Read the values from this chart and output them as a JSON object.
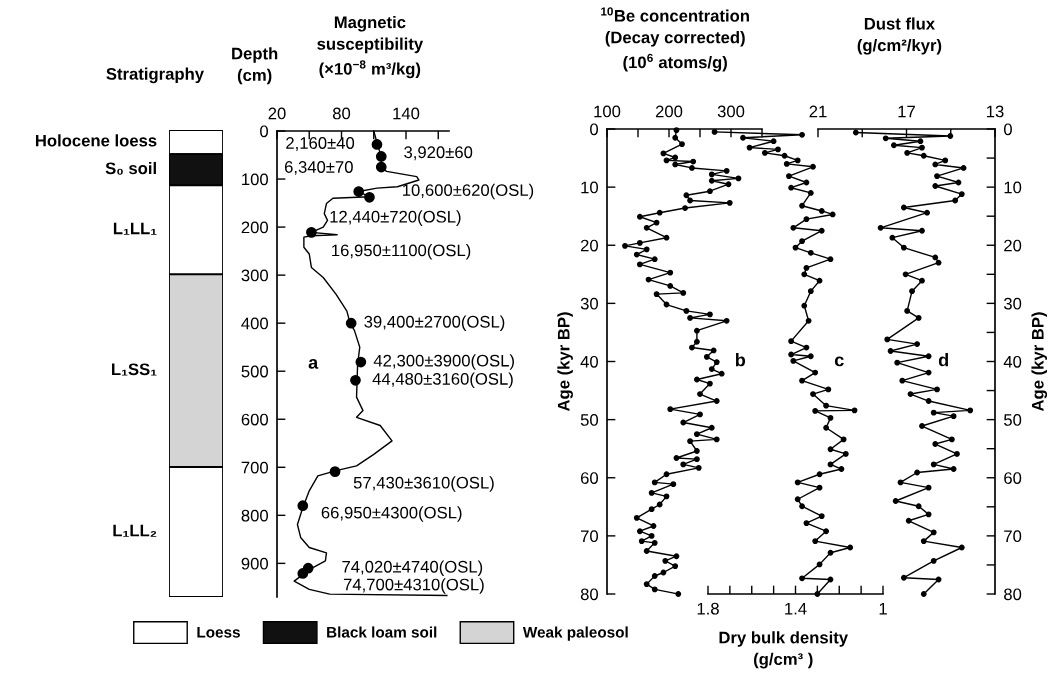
{
  "chart_data": [
    {
      "type": "bar",
      "title": "Stratigraphy",
      "categories": [
        null
      ],
      "stacked": true,
      "legend": "bottom",
      "tick_labels": false,
      "ylim": [
        970,
        0
      ],
      "series": [
        {
          "name": "Loess",
          "color": "#ffffff",
          "values": [
            50
          ]
        },
        {
          "name": "Black loam soil",
          "color": "#111111",
          "values": [
            65
          ]
        },
        {
          "color": "#ffffff",
          "values": [
            185
          ]
        },
        {
          "name": "Weak paleosol",
          "color": "#d4d4d4",
          "values": [
            400
          ]
        },
        {
          "color": "#ffffff",
          "values": [
            270
          ]
        }
      ],
      "annotations": [
        "Holocene loess",
        "S₀ soil",
        "L₁LL₁",
        "L₁SS₁",
        "L₁LL₂"
      ]
    },
    {
      "type": "line",
      "xlabel": "Magnetic\nsusceptibility\n(×10$^{−8}$ m³/kg)",
      "ylabel": "Depth\n(cm)",
      "xlim": [
        20,
        180
      ],
      "ylim": [
        970,
        0
      ],
      "xticks": [
        20,
        {
          "value": 50,
          "label": null
        },
        80,
        {
          "value": 110,
          "label": null
        },
        140,
        {
          "value": 170,
          "label": null
        }
      ],
      "yticks": [
        0,
        100,
        200,
        300,
        400,
        500,
        600,
        700,
        800,
        900
      ],
      "series": [
        {
          "type": "line",
          "color": "#000000",
          "x": [
            110,
            114,
            117,
            117,
            122,
            150,
            152,
            132,
            113,
            96,
            106,
            72,
            66,
            64,
            67,
            63,
            52,
            76,
            52,
            45,
            45,
            50,
            52,
            63,
            75,
            85,
            88,
            92,
            97,
            95,
            94,
            100,
            94,
            116,
            127,
            110,
            94,
            75,
            58,
            50,
            44,
            39,
            42,
            50,
            66,
            65,
            50,
            36,
            50,
            69,
            178
          ],
          "values": [
            0,
            32,
            53,
            77,
            84,
            95,
            102,
            116,
            119,
            126,
            137,
            140,
            151,
            172,
            186,
            200,
            211,
            216,
            218,
            221,
            242,
            256,
            284,
            305,
            340,
            375,
            400,
            415,
            450,
            485,
            554,
            582,
            596,
            613,
            645,
            673,
            697,
            707,
            718,
            749,
            784,
            819,
            846,
            867,
            878,
            895,
            913,
            937,
            954,
            964,
            967
          ]
        },
        {
          "type": "scatter",
          "color": "#000000",
          "x": [
            113,
            117,
            117,
            96,
            106,
            52,
            89,
            98,
            93,
            74,
            44,
            49,
            44
          ],
          "values": [
            28,
            53,
            75,
            126,
            138,
            211,
            400,
            481,
            519,
            709,
            780,
            910,
            921
          ]
        }
      ],
      "annotations": [
        "a",
        {
          "text": "2,160±40",
          "x": 113,
          "y": 28
        },
        {
          "text": "3,920±60",
          "x": 117,
          "y": 53
        },
        {
          "text": "6,340±70",
          "x": 117,
          "y": 75
        },
        {
          "text": "10,600±620(OSL)",
          "x": 96,
          "y": 126
        },
        {
          "text": "12,440±720(OSL)",
          "x": 106,
          "y": 138
        },
        {
          "text": "16,950±1100(OSL)",
          "x": 52,
          "y": 211
        },
        {
          "text": "39,400±2700(OSL)",
          "x": 89,
          "y": 400
        },
        {
          "text": "42,300±3900(OSL)",
          "x": 98,
          "y": 481
        },
        {
          "text": "44,480±3160(OSL)",
          "x": 93,
          "y": 519
        },
        {
          "text": "57,430±3610(OSL)",
          "x": 74,
          "y": 709
        },
        {
          "text": "66,950±4300(OSL)",
          "x": 44,
          "y": 780
        },
        {
          "text": "74,020±4740(OSL)",
          "x": 49,
          "y": 910
        },
        {
          "text": "74,700±4310(OSL)",
          "x": 44,
          "y": 921
        }
      ]
    },
    {
      "type": "line",
      "xlabel": "$^{10}$Be concentration\n(Decay corrected)\n(10$^{6}$ atoms/g)",
      "ylabel": "Age (kyr BP)",
      "xlim": [
        100,
        350
      ],
      "ylim": [
        80,
        0
      ],
      "marker": "circle",
      "xticks": [
        100,
        {
          "value": 150,
          "label": null
        },
        200,
        {
          "value": 250,
          "label": null
        },
        300,
        {
          "value": 350,
          "label": null
        }
      ],
      "yticks": [
        0,
        10,
        20,
        30,
        40,
        50,
        60,
        70,
        80
      ],
      "series": [
        {
          "color": "#000000",
          "x": [
            212,
            210,
            221,
            191,
            210,
            196,
            239,
            210,
            237,
            293,
            269,
            312,
            269,
            296,
            266,
            228,
            234,
            298,
            226,
            185,
            153,
            180,
            164,
            196,
            153,
            129,
            164,
            148,
            177,
            153,
            202,
            167,
            202,
            223,
            180,
            196,
            228,
            266,
            234,
            293,
            245,
            245,
            237,
            272,
            261,
            277,
            269,
            285,
            245,
            266,
            250,
            277,
            202,
            250,
            223,
            269,
            245,
            277,
            234,
            245,
            212,
            245,
            223,
            248,
            196,
            177,
            207,
            172,
            196,
            185,
            172,
            148,
            175,
            153,
            172,
            156,
            177,
            164,
            212,
            194,
            210,
            191,
            177,
            164,
            177,
            215
          ],
          "values": [
            0.2,
            1.5,
            2.6,
            4.2,
            4.9,
            5.4,
            5.6,
            6.1,
            6.7,
            7.2,
            7.8,
            8.5,
            8.9,
            9.5,
            10.7,
            11.4,
            12.3,
            12.7,
            13.6,
            14.4,
            15.1,
            16.1,
            17.0,
            18.7,
            19.6,
            20.1,
            20.7,
            21.6,
            22.4,
            23.3,
            24.7,
            25.9,
            27.0,
            28.2,
            28.4,
            30.2,
            31.3,
            31.9,
            32.5,
            33.0,
            34.7,
            36.6,
            37.6,
            38.1,
            39.2,
            40.1,
            41.3,
            42.1,
            43.1,
            43.8,
            45.6,
            46.8,
            48.2,
            49.1,
            50.5,
            51.4,
            52.5,
            53.4,
            53.7,
            55.4,
            56.6,
            56.8,
            57.7,
            58.3,
            59.4,
            60.8,
            61.1,
            62.6,
            63.2,
            64.6,
            65.4,
            66.9,
            68.3,
            69.2,
            70.0,
            70.9,
            71.2,
            72.6,
            73.5,
            74.3,
            75.2,
            76.3,
            76.9,
            78.3,
            79.2,
            80.0
          ]
        }
      ],
      "annotations": [
        "b"
      ]
    },
    {
      "type": "line",
      "xlabel": "Dry bulk density\n(g/cm³ )",
      "tick_labels": "x",
      "xlim": [
        1.8,
        1.0
      ],
      "ylim": [
        80,
        0
      ],
      "marker": "circle",
      "xticks": [
        1.8,
        {
          "value": 1.7,
          "label": null
        },
        {
          "value": 1.6,
          "label": null
        },
        {
          "value": 1.5,
          "label": null
        },
        1.4,
        {
          "value": 1.3,
          "label": null
        },
        {
          "value": 1.2,
          "label": null
        },
        {
          "value": 1.1,
          "label": null
        },
        1
      ],
      "series": [
        {
          "color": "#000000",
          "x": [
            1.77,
            1.37,
            1.64,
            1.5,
            1.61,
            1.48,
            1.54,
            1.45,
            1.39,
            1.44,
            1.32,
            1.43,
            1.35,
            1.42,
            1.33,
            1.37,
            1.28,
            1.23,
            1.35,
            1.41,
            1.28,
            1.37,
            1.4,
            1.33,
            1.24,
            1.35,
            1.36,
            1.29,
            1.33,
            1.36,
            1.34,
            1.42,
            1.35,
            1.42,
            1.33,
            1.41,
            1.31,
            1.37,
            1.25,
            1.32,
            1.26,
            1.13,
            1.31,
            1.24,
            1.26,
            1.18,
            1.24,
            1.17,
            1.24,
            1.19,
            1.29,
            1.39,
            1.29,
            1.39,
            1.37,
            1.28,
            1.35,
            1.26,
            1.31,
            1.15,
            1.24,
            1.29,
            1.37,
            1.24,
            1.3
          ],
          "values": [
            0.5,
            1.0,
            1.5,
            2.1,
            3.2,
            3.5,
            4.1,
            4.6,
            5.4,
            6.0,
            6.5,
            8.1,
            9.2,
            10.1,
            11.0,
            13.2,
            14.1,
            14.7,
            15.5,
            17.0,
            17.5,
            19.3,
            20.4,
            21.3,
            22.4,
            23.9,
            25.0,
            26.1,
            27.9,
            30.4,
            33.0,
            36.5,
            37.6,
            38.8,
            39.1,
            39.9,
            41.9,
            43.3,
            44.8,
            45.6,
            47.6,
            48.4,
            48.5,
            49.7,
            51.4,
            53.4,
            55.1,
            55.9,
            57.7,
            58.5,
            59.4,
            60.8,
            61.7,
            63.7,
            64.9,
            66.6,
            67.8,
            69.2,
            70.9,
            72.0,
            72.9,
            74.9,
            77.3,
            77.5,
            80.0
          ]
        }
      ],
      "annotations": [
        "c"
      ]
    },
    {
      "type": "line",
      "xlabel": "Dust flux\n(g/cm²/kyr)",
      "ylabel": "Age (kyr BP)",
      "xlim": [
        21,
        13
      ],
      "ylim": [
        80,
        0
      ],
      "marker": "circle",
      "xticks": [
        21,
        {
          "value": 19,
          "label": null
        },
        17,
        {
          "value": 15,
          "label": null
        },
        13
      ],
      "yticks": [
        0,
        {
          "value": 5,
          "label": null
        },
        10,
        {
          "value": 15,
          "label": null
        },
        20,
        {
          "value": 25,
          "label": null
        },
        30,
        {
          "value": 35,
          "label": null
        },
        40,
        {
          "value": 45,
          "label": null
        },
        50,
        {
          "value": 55,
          "label": null
        },
        60,
        {
          "value": 65,
          "label": null
        },
        70,
        {
          "value": 75,
          "label": null
        },
        80
      ],
      "series": [
        {
          "color": "#000000",
          "x": [
            19.29,
            15.02,
            17.94,
            16.37,
            17.57,
            16.3,
            16.97,
            16.22,
            15.25,
            15.7,
            14.42,
            15.62,
            14.65,
            15.7,
            14.5,
            14.8,
            17.12,
            16.07,
            18.17,
            16.3,
            17.64,
            17.12,
            15.7,
            15.55,
            17.04,
            16.3,
            16.75,
            16.97,
            16.45,
            17.87,
            16.52,
            17.72,
            16.0,
            17.42,
            16.0,
            17.19,
            15.62,
            16.82,
            16.0,
            14.12,
            15.77,
            14.87,
            16.3,
            14.95,
            15.7,
            14.72,
            15.77,
            14.87,
            16.52,
            17.27,
            16.0,
            17.49,
            16.45,
            16.0,
            16.9,
            15.77,
            16.22,
            14.5,
            15.77,
            17.12,
            15.55,
            16.22
          ],
          "values": [
            0.6,
            1.2,
            1.6,
            2.1,
            2.8,
            3.2,
            4.1,
            4.6,
            5.4,
            6.1,
            6.7,
            8.1,
            9.2,
            9.8,
            11.2,
            12.3,
            13.5,
            14.4,
            17.0,
            17.5,
            18.7,
            20.4,
            22.1,
            23.0,
            25.0,
            26.1,
            27.9,
            31.3,
            32.5,
            36.2,
            37.0,
            38.2,
            39.1,
            40.2,
            41.9,
            43.3,
            44.8,
            45.6,
            46.8,
            48.4,
            48.8,
            49.4,
            51.1,
            53.4,
            54.2,
            55.9,
            57.7,
            58.5,
            59.1,
            60.8,
            61.7,
            64.0,
            64.9,
            66.3,
            67.4,
            69.4,
            70.9,
            72.0,
            74.3,
            77.2,
            77.5,
            80.0
          ]
        }
      ],
      "annotations": [
        "d"
      ]
    }
  ]
}
